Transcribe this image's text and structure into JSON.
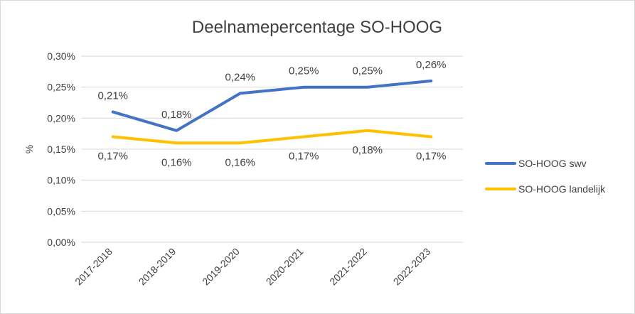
{
  "chart_data": {
    "type": "line",
    "title": "Deelnamepercentage SO-HOOG",
    "ylabel": "%",
    "xlabel": "",
    "categories": [
      "2017-2018",
      "2018-2019",
      "2019-2020",
      "2020-2021",
      "2021-2022",
      "2022-2023"
    ],
    "ylim": [
      0,
      0.3
    ],
    "yticks": [
      "0,00%",
      "0,05%",
      "0,10%",
      "0,15%",
      "0,20%",
      "0,25%",
      "0,30%"
    ],
    "grid": true,
    "legend_position": "right",
    "series": [
      {
        "name": "SO-HOOG swv",
        "color": "#4472c4",
        "values": [
          0.21,
          0.18,
          0.24,
          0.25,
          0.25,
          0.26
        ],
        "labels": [
          "0,21%",
          "0,18%",
          "0,24%",
          "0,25%",
          "0,25%",
          "0,26%"
        ]
      },
      {
        "name": "SO-HOOG landelijk",
        "color": "#ffc000",
        "values": [
          0.17,
          0.16,
          0.16,
          0.17,
          0.18,
          0.17
        ],
        "labels": [
          "0,17%",
          "0,16%",
          "0,16%",
          "0,17%",
          "0,18%",
          "0,17%"
        ]
      }
    ]
  }
}
